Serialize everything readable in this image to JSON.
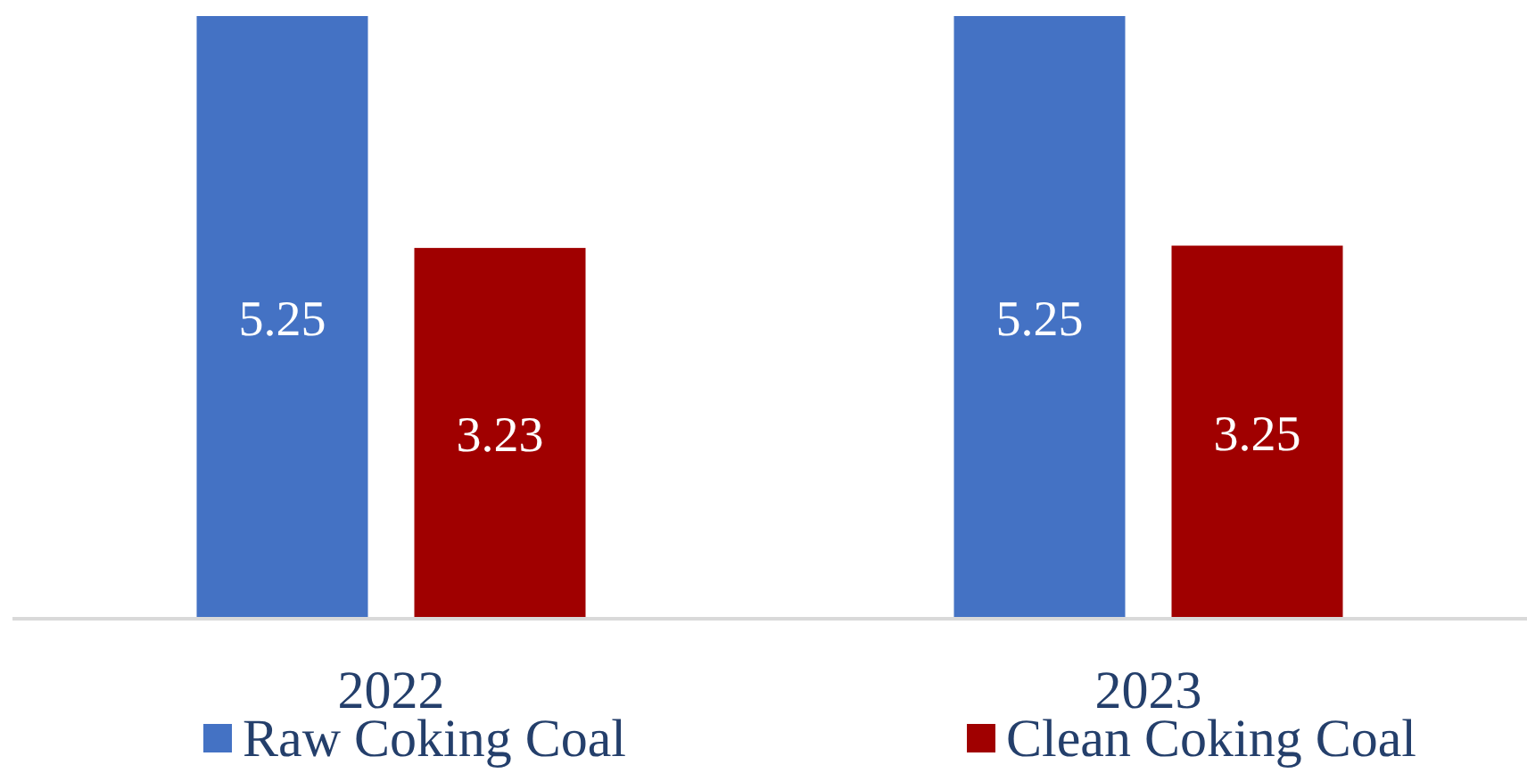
{
  "chart_data": {
    "type": "bar",
    "categories": [
      "2022",
      "2023"
    ],
    "series": [
      {
        "name": "Raw Coking Coal",
        "color": "#4472c4",
        "values": [
          5.25,
          5.25
        ]
      },
      {
        "name": "Clean Coking Coal",
        "color": "#a00000",
        "values": [
          3.23,
          3.25
        ]
      }
    ],
    "data_labels": true,
    "legend": "bottom"
  }
}
